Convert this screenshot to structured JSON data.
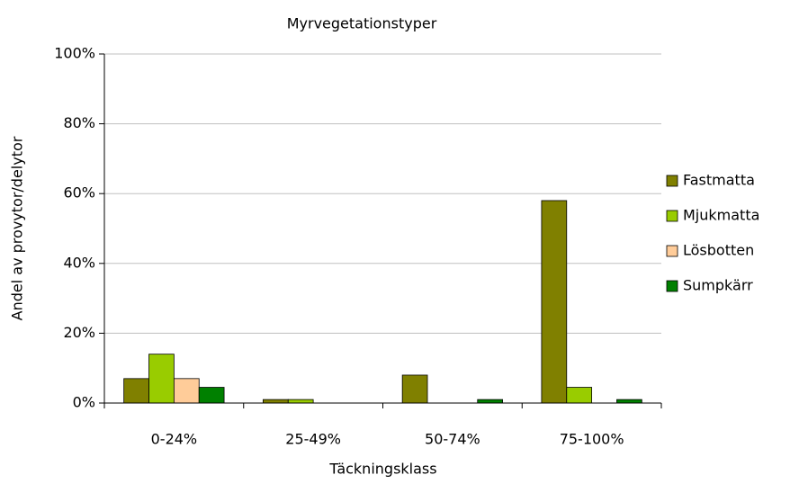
{
  "chart_data": {
    "type": "bar",
    "title": "Myrvegetationstyper",
    "x_label": "Täckningsklass",
    "y_label": "Andel av provytor/delytor",
    "categories": [
      "0-24%",
      "25-49%",
      "50-74%",
      "75-100%"
    ],
    "series": [
      {
        "name": "Fastmatta",
        "color": "#808000",
        "values": [
          7,
          1,
          8,
          58
        ]
      },
      {
        "name": "Mjukmatta",
        "color": "#99cc00",
        "values": [
          14,
          1,
          0,
          4.5
        ]
      },
      {
        "name": "Lösbotten",
        "color": "#ffcc99",
        "values": [
          7,
          0,
          0,
          0
        ]
      },
      {
        "name": "Sumpkärr",
        "color": "#008000",
        "values": [
          4.5,
          0,
          1,
          1
        ]
      }
    ],
    "ylim": [
      0,
      100
    ],
    "yticks": [
      {
        "value": 0,
        "label": "0%"
      },
      {
        "value": 20,
        "label": "20%"
      },
      {
        "value": 40,
        "label": "40%"
      },
      {
        "value": 60,
        "label": "60%"
      },
      {
        "value": 80,
        "label": "80%"
      },
      {
        "value": 100,
        "label": "100%"
      }
    ],
    "grid": true,
    "legend": "right"
  }
}
